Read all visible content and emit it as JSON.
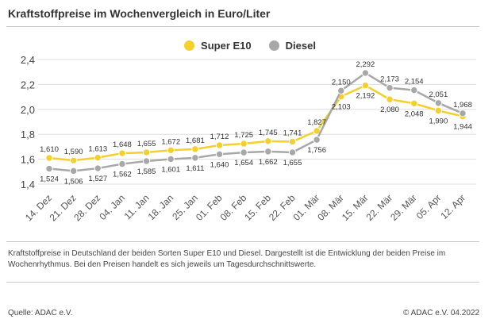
{
  "title": "Kraftstoffpreise im Wochenvergleich in Euro/Liter",
  "description": "Kraftstoffpreise in Deutschland der beiden Sorten Super E10 und Diesel. Dargestellt ist die Entwicklung der beiden Preise im Wochenrhythmus. Bei den Preisen handelt es sich jeweils um Tagesdurchschnittswerte.",
  "source": "Quelle: ADAC e.V.",
  "copyright": "© ADAC e.V. 04.2022",
  "chart_data": {
    "type": "line",
    "title": "Kraftstoffpreise im Wochenvergleich in Euro/Liter",
    "xlabel": "",
    "ylabel": "",
    "ylim": [
      1.4,
      2.4
    ],
    "yticks": [
      "1,4",
      "1,6",
      "1,8",
      "2,0",
      "2,2",
      "2,4"
    ],
    "grid": true,
    "legend_position": "top-center",
    "categories": [
      "14. Dez",
      "21. Dez",
      "28. Dez",
      "04. Jan",
      "11. Jan",
      "18. Jan",
      "25. Jan",
      "01. Feb",
      "08. Feb",
      "15. Feb",
      "22. Feb",
      "01. Mär",
      "08. Mär",
      "15. Mär",
      "22. Mär",
      "29. Mär",
      "05. Apr",
      "12. Apr"
    ],
    "series": [
      {
        "name": "Super E10",
        "color": "#f5cf2a",
        "values": [
          1.61,
          1.59,
          1.613,
          1.648,
          1.655,
          1.672,
          1.681,
          1.712,
          1.725,
          1.745,
          1.741,
          1.827,
          2.103,
          2.192,
          2.08,
          2.048,
          1.99,
          1.944
        ],
        "labels": [
          "1,610",
          "1,590",
          "1,613",
          "1,648",
          "1,655",
          "1,672",
          "1,681",
          "1,712",
          "1,725",
          "1,745",
          "1,741",
          "1,827",
          "2,103",
          "2,192",
          "2,080",
          "2,048",
          "1,990",
          "1,944"
        ]
      },
      {
        "name": "Diesel",
        "color": "#a8a8a8",
        "values": [
          1.524,
          1.506,
          1.527,
          1.562,
          1.585,
          1.601,
          1.611,
          1.64,
          1.654,
          1.662,
          1.655,
          1.756,
          2.15,
          2.292,
          2.173,
          2.154,
          2.051,
          1.968
        ],
        "labels": [
          "1,524",
          "1,506",
          "1,527",
          "1,562",
          "1,585",
          "1,601",
          "1,611",
          "1,640",
          "1,654",
          "1,662",
          "1,655",
          "1,756",
          "2,150",
          "2,292",
          "2,173",
          "2,154",
          "2,051",
          "1,968"
        ]
      }
    ]
  }
}
